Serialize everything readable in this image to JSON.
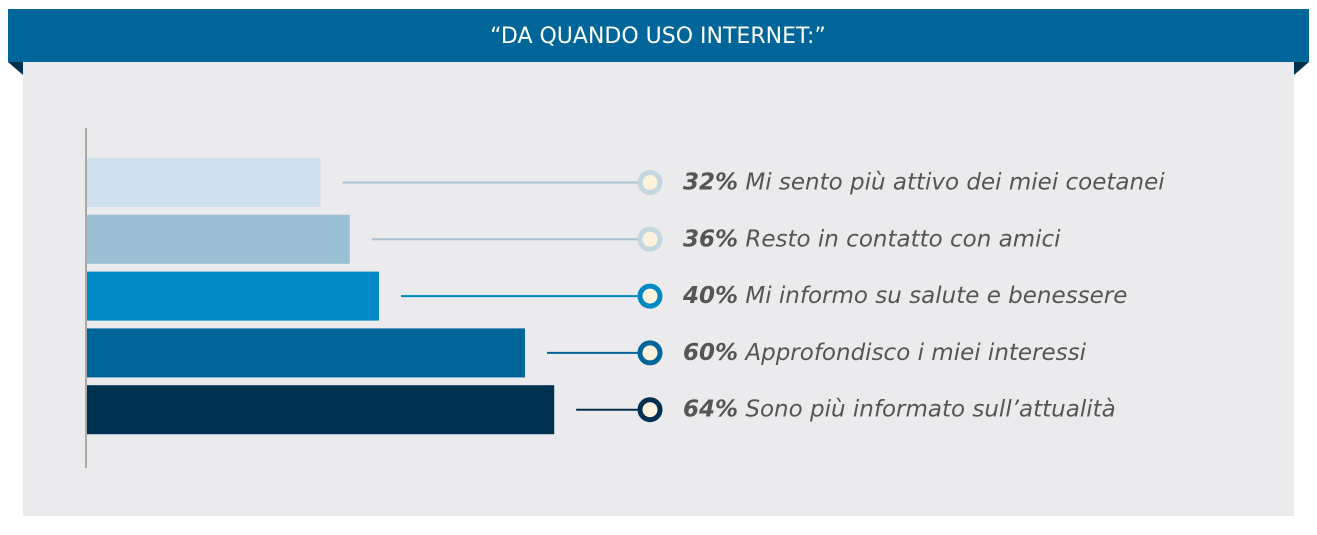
{
  "chart_data": {
    "type": "bar",
    "orientation": "horizontal",
    "title": "“DA QUANDO USO INTERNET:”",
    "categories": [
      "Mi sento più attivo dei miei coetanei",
      "Resto in contatto con amici",
      "Mi informo su salute e benessere",
      "Approfondisco i miei interessi",
      "Sono più informato sull’attualità"
    ],
    "values": [
      32,
      36,
      40,
      60,
      64
    ],
    "value_labels": [
      "32%",
      "36%",
      "40%",
      "60%",
      "64%"
    ],
    "colors": [
      "#cde0ec",
      "#9bc0d6",
      "#0089c3",
      "#006699",
      "#003150"
    ]
  }
}
